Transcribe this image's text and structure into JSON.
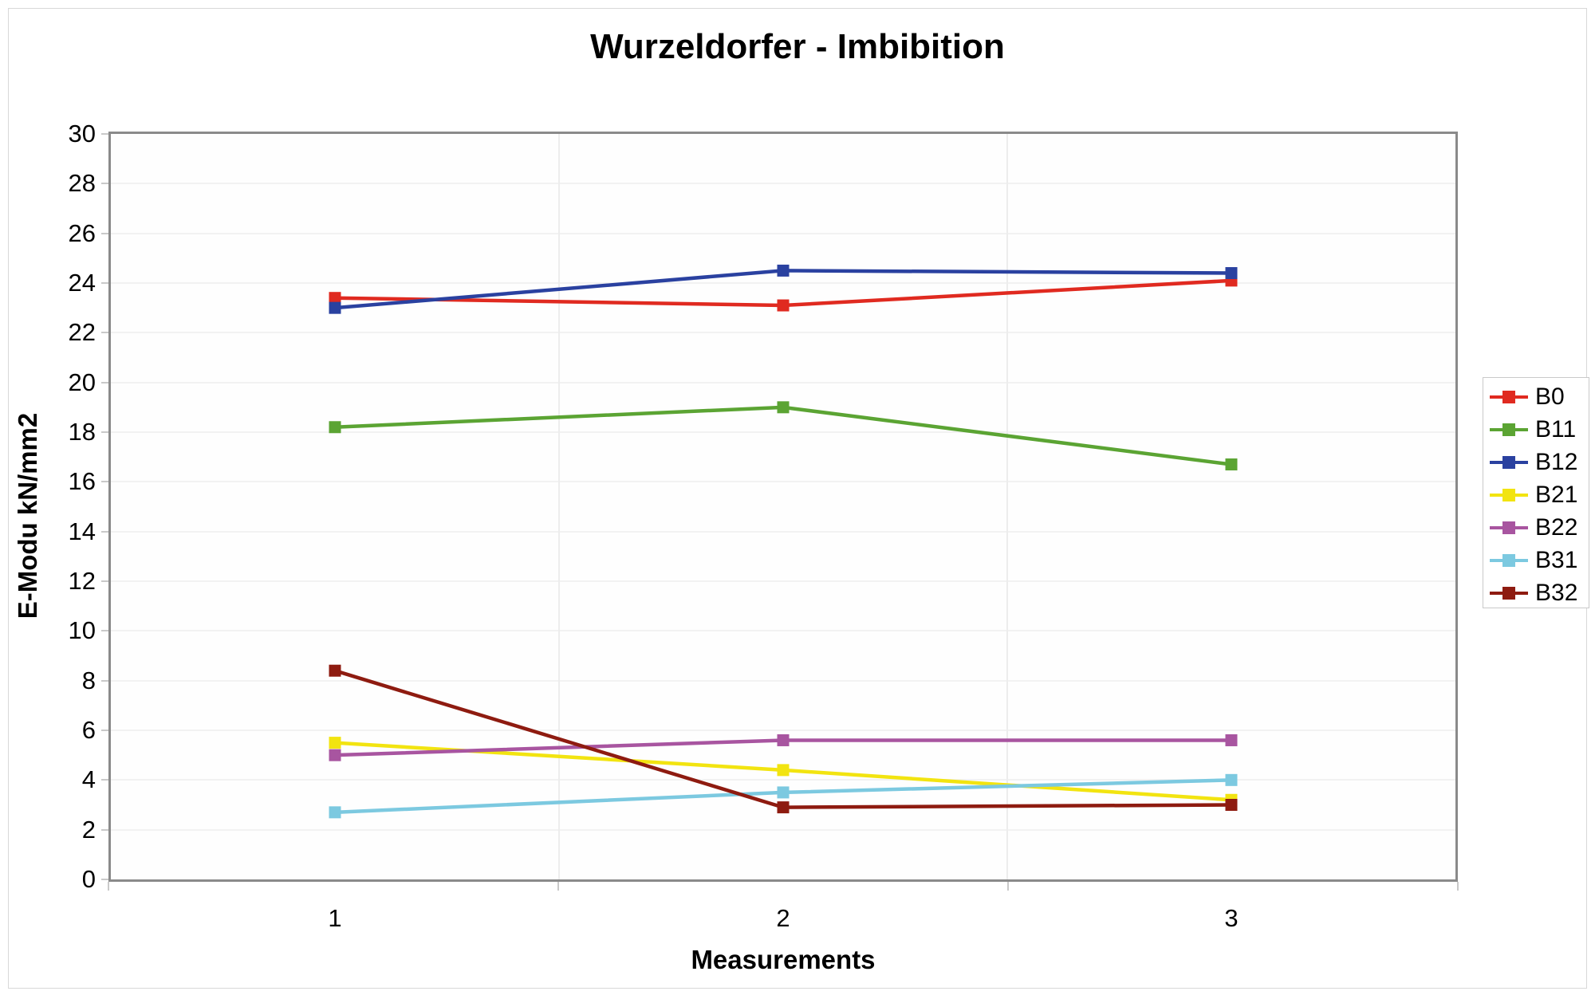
{
  "chart_data": {
    "type": "line",
    "title": "Wurzeldorfer - Imbibition",
    "xlabel": "Measurements",
    "ylabel": "E-Modu kN/mm2",
    "x": [
      1,
      2,
      3
    ],
    "xtick_labels": [
      "1",
      "2",
      "3"
    ],
    "ylim": [
      0,
      30
    ],
    "ytick_step": 2,
    "ytick_labels": [
      "30",
      "28",
      "26",
      "24",
      "22",
      "20",
      "18",
      "16",
      "14",
      "12",
      "10",
      "8",
      "6",
      "4",
      "2",
      "0"
    ],
    "grid": "faint horizontal gridlines every 2 units; faint vertical gridlines at category boundaries",
    "legend_position": "right",
    "marker": "square",
    "series": [
      {
        "name": "B0",
        "color": "#e02a20",
        "values": [
          23.4,
          23.1,
          24.1
        ]
      },
      {
        "name": "B11",
        "color": "#5ba433",
        "values": [
          18.2,
          19.0,
          16.7
        ]
      },
      {
        "name": "B12",
        "color": "#2a41a0",
        "values": [
          23.0,
          24.5,
          24.4
        ]
      },
      {
        "name": "B21",
        "color": "#f2e410",
        "values": [
          5.5,
          4.4,
          3.2
        ]
      },
      {
        "name": "B22",
        "color": "#a855a0",
        "values": [
          5.0,
          5.6,
          5.6
        ]
      },
      {
        "name": "B31",
        "color": "#7cc9e0",
        "values": [
          2.7,
          3.5,
          4.0
        ]
      },
      {
        "name": "B32",
        "color": "#8e1b10",
        "values": [
          8.4,
          2.9,
          3.0
        ]
      }
    ],
    "appearance": {
      "frame_color": "#8a8a8a",
      "hgrid_color": "#f2f2f2",
      "vgrid_color": "#ededed",
      "tick_color": "#c9c9c9",
      "canvas_border_color": "#d8d8d8",
      "legend_border_color": "#c9c9c9",
      "text_color": "#000000",
      "background": "#ffffff"
    }
  }
}
